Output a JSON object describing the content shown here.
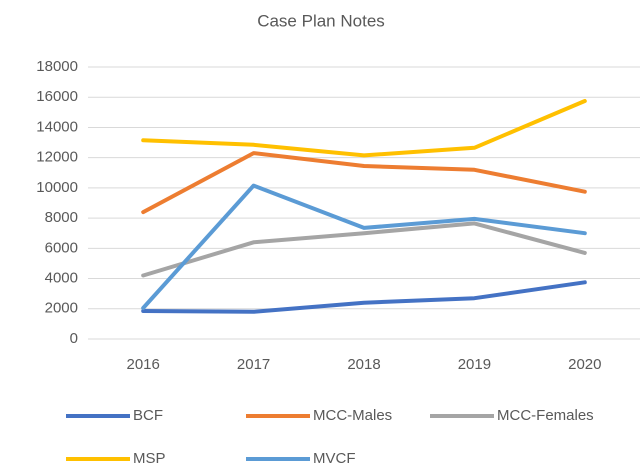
{
  "chart_data": {
    "type": "line",
    "title": "Case Plan Notes",
    "categories": [
      "2016",
      "2017",
      "2018",
      "2019",
      "2020"
    ],
    "series": [
      {
        "name": "BCF",
        "color": "#4472c4",
        "values": [
          1850,
          1800,
          2400,
          2700,
          3750
        ]
      },
      {
        "name": "MCC-Males",
        "color": "#ed7d31",
        "values": [
          8400,
          12300,
          11450,
          11200,
          9750
        ]
      },
      {
        "name": "MCC-Females",
        "color": "#a5a5a5",
        "values": [
          4200,
          6400,
          7000,
          7650,
          5700
        ]
      },
      {
        "name": "MSP",
        "color": "#ffc000",
        "values": [
          13150,
          12850,
          12150,
          12650,
          15750
        ]
      },
      {
        "name": "MVCF",
        "color": "#5b9bd5",
        "values": [
          2050,
          10150,
          7350,
          7950,
          7000
        ]
      }
    ],
    "ylim": [
      0,
      18000
    ],
    "yticks": [
      0,
      2000,
      4000,
      6000,
      8000,
      10000,
      12000,
      14000,
      16000,
      18000
    ],
    "grid": true
  }
}
